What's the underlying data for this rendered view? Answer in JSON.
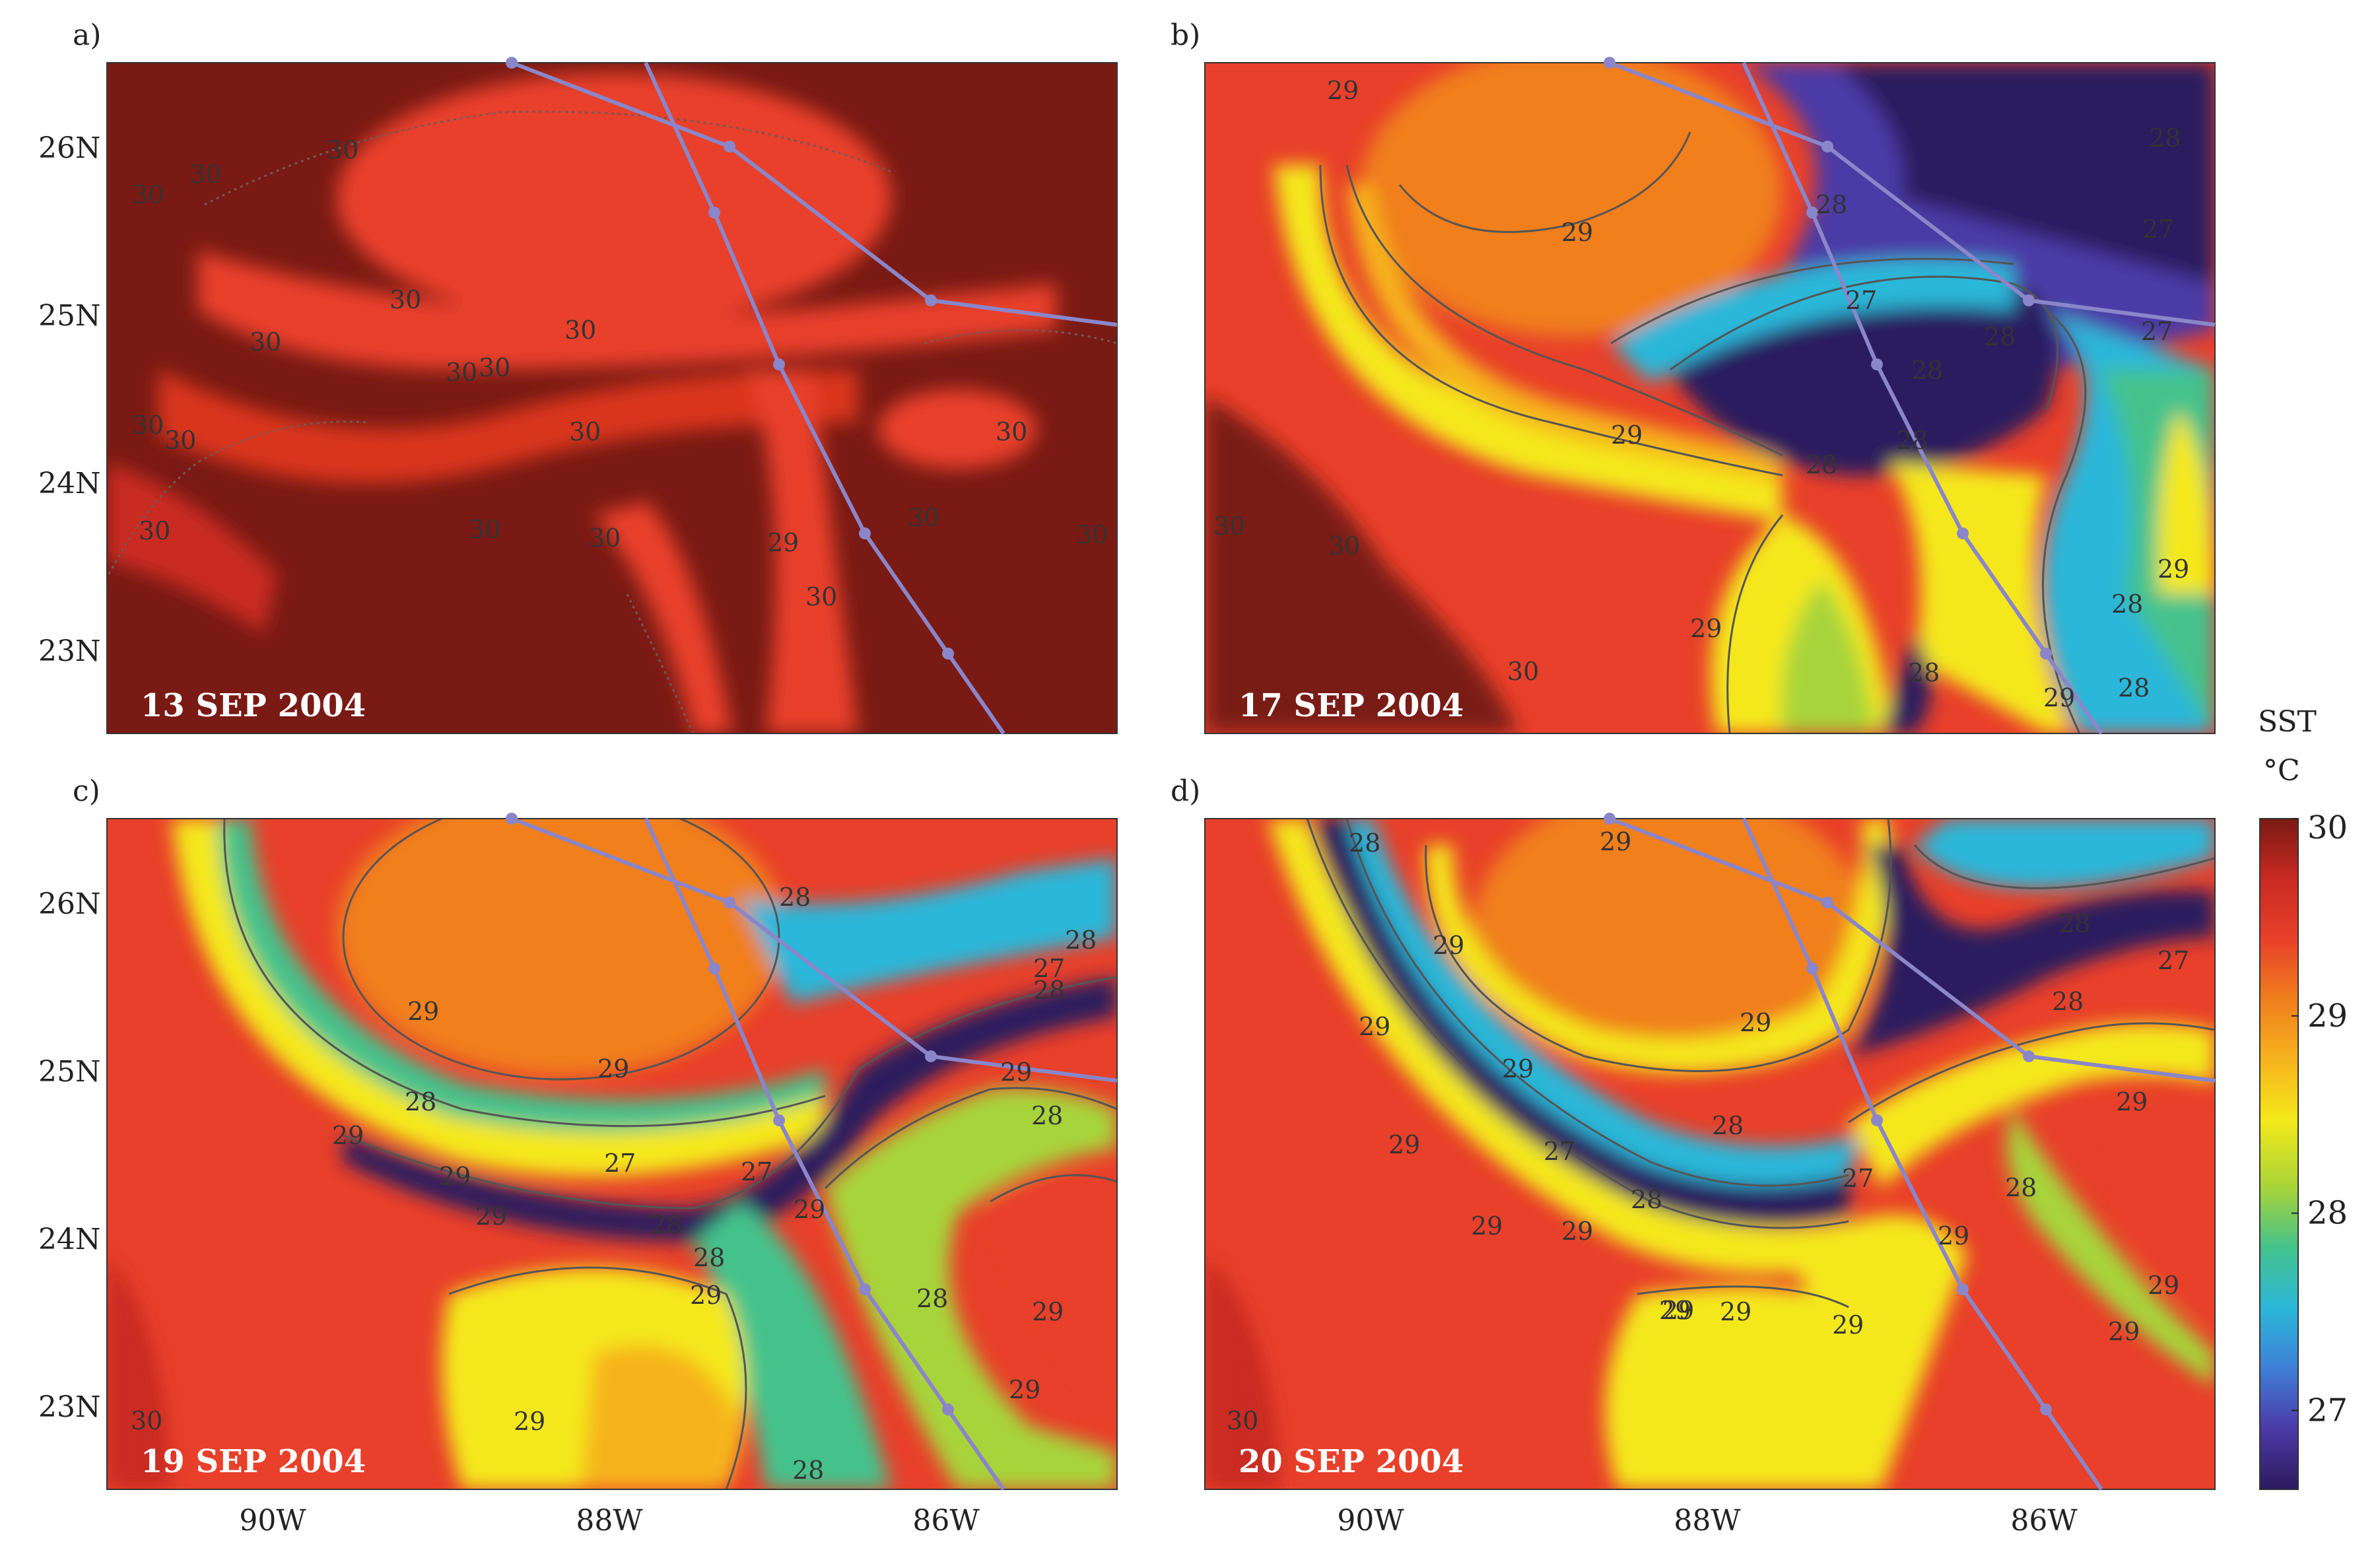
{
  "figure": {
    "colorbar": {
      "title_line1": "SST",
      "title_line2": "°C",
      "ticks": [
        {
          "value": 27,
          "label": "27"
        },
        {
          "value": 28,
          "label": "28"
        },
        {
          "value": 29,
          "label": "29"
        },
        {
          "value": 30,
          "label": "30"
        }
      ],
      "min": 26.6,
      "max": 30.0,
      "colors": [
        "#2c1a5e",
        "#4b3aa6",
        "#3f7fd6",
        "#2bb7d9",
        "#44c28c",
        "#a7d43a",
        "#f4e81a",
        "#f6b41e",
        "#f07f1d",
        "#e8402a",
        "#c92a22",
        "#7a1a14"
      ]
    },
    "y_axis_ticks": [
      "26N",
      "25N",
      "24N",
      "23N"
    ],
    "x_axis_ticks": [
      "90W",
      "88W",
      "86W"
    ],
    "track_color": "#8a86c9",
    "panels": [
      {
        "letter": "a)",
        "date": "13 SEP 2004",
        "contour_labels": [
          "30",
          "30",
          "30",
          "30",
          "30",
          "30",
          "30",
          "30",
          "30",
          "30",
          "30",
          "30",
          "30",
          "30",
          "30",
          "30",
          "30",
          "30",
          "29",
          "30",
          "30"
        ]
      },
      {
        "letter": "b)",
        "date": "17 SEP 2004",
        "contour_labels": [
          "29",
          "28",
          "28",
          "29",
          "27",
          "27",
          "27",
          "28",
          "28",
          "28",
          "29",
          "28",
          "30",
          "30",
          "29",
          "29",
          "28",
          "29",
          "28",
          "29",
          "28",
          "30"
        ]
      },
      {
        "letter": "c)",
        "date": "19 SEP 2004",
        "contour_labels": [
          "28",
          "28",
          "27",
          "28",
          "29",
          "29",
          "28",
          "29",
          "28",
          "27",
          "27",
          "29",
          "29",
          "29",
          "28",
          "28",
          "28",
          "29",
          "29",
          "28",
          "29",
          "29",
          "30",
          "28",
          "28"
        ]
      },
      {
        "letter": "d)",
        "date": "20 SEP 2004",
        "contour_labels": [
          "28",
          "29",
          "29",
          "28",
          "27",
          "29",
          "29",
          "29",
          "28",
          "29",
          "27",
          "28",
          "29",
          "29",
          "29",
          "29",
          "27",
          "28",
          "28",
          "29",
          "29",
          "29",
          "29",
          "29",
          "29",
          "30"
        ]
      }
    ]
  }
}
